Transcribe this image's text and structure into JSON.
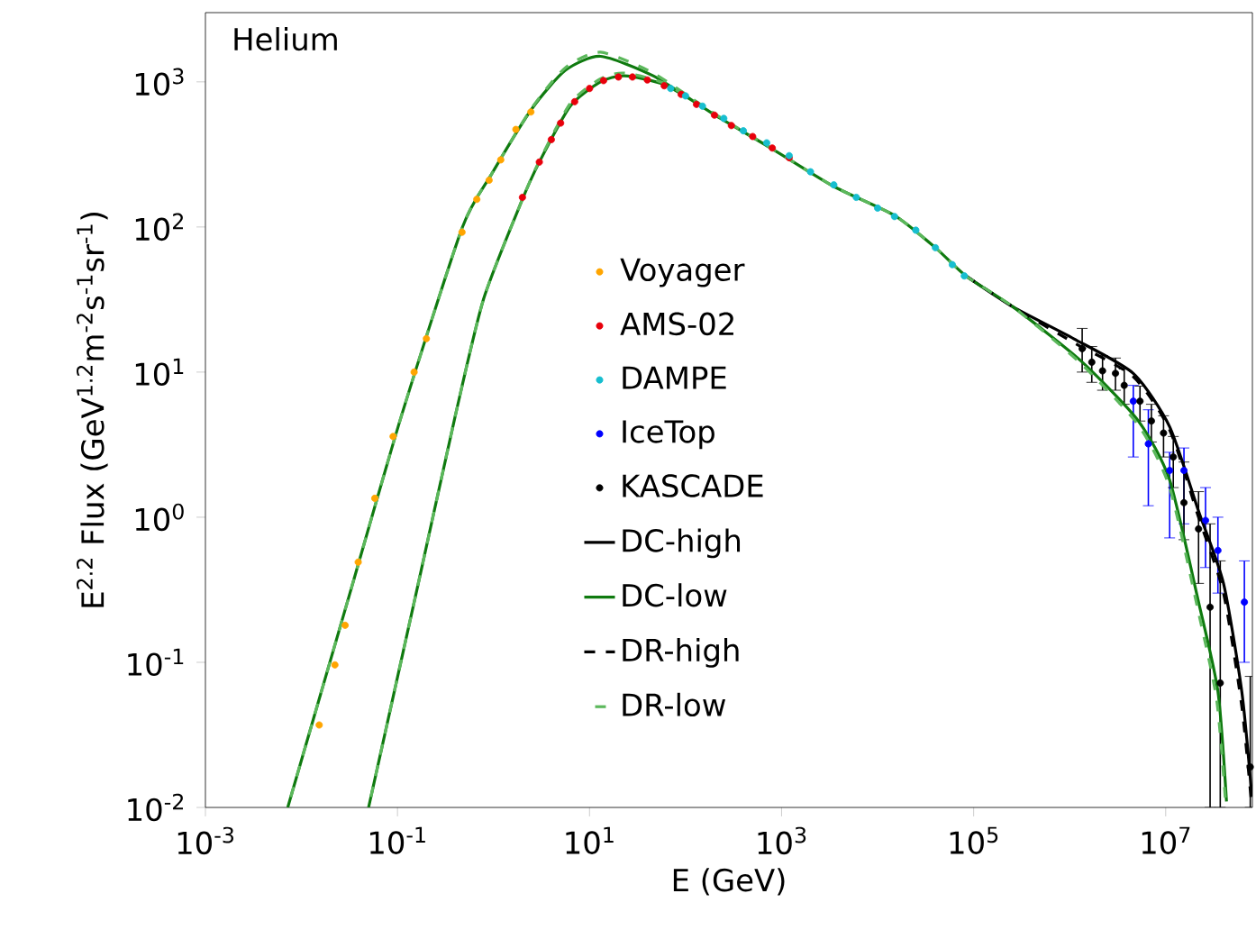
{
  "chart_data": {
    "type": "line",
    "xlabel": "E (GeV)",
    "ylabel": "E$^{2.2}$ Flux (GeV$^{1.2}$m$^{-2}$s$^{-1}$sr$^{-1}$)",
    "annotations": [
      "Helium"
    ],
    "log": "xy",
    "legend": "center",
    "xlim": [
      0.001,
      80000000
    ],
    "ylim": [
      0.01,
      3000
    ],
    "xticks": [
      {
        "value": 0.001,
        "label": "10$^{-3}$"
      },
      {
        "value": 0.1,
        "label": "10$^{-1}$"
      },
      {
        "value": 10,
        "label": "10$^{1}$"
      },
      {
        "value": 1000,
        "label": "10$^{3}$"
      },
      {
        "value": 100000,
        "label": "10$^{5}$"
      },
      {
        "value": 10000000,
        "label": "10$^{7}$"
      }
    ],
    "yticks": [
      {
        "value": 0.01,
        "label": "10$^{-2}$"
      },
      {
        "value": 0.1,
        "label": "10$^{-1}$"
      },
      {
        "value": 1,
        "label": "10$^{0}$"
      },
      {
        "value": 10,
        "label": "10$^{1}$"
      },
      {
        "value": 100,
        "label": "10$^{2}$"
      },
      {
        "value": 1000,
        "label": "10$^{3}$"
      }
    ],
    "series": [
      {
        "name": "Voyager",
        "type": "scatter",
        "marker": "circle",
        "color": "#ffa500",
        "x": [
          0.0153,
          0.0223,
          0.0285,
          0.039,
          0.058,
          0.09,
          0.149,
          0.2,
          0.47,
          0.67,
          0.9,
          1.19,
          1.71,
          2.45
        ],
        "values": [
          0.037,
          0.096,
          0.18,
          0.49,
          1.35,
          3.6,
          10,
          17,
          92,
          155,
          210,
          290,
          470,
          620
        ]
      },
      {
        "name": "AMS-02",
        "type": "scatter",
        "marker": "circle",
        "color": "#e8000b",
        "x": [
          2,
          3,
          4,
          5,
          7,
          10,
          14,
          20,
          28,
          40,
          60,
          90,
          130,
          200,
          300,
          500,
          800,
          1200
        ],
        "values": [
          160,
          280,
          400,
          520,
          730,
          900,
          1020,
          1080,
          1080,
          1030,
          940,
          820,
          700,
          590,
          500,
          420,
          350,
          300
        ]
      },
      {
        "name": "DAMPE",
        "type": "scatter",
        "marker": "circle",
        "color": "#17becf",
        "x": [
          70,
          100,
          150,
          250,
          400,
          700,
          1200,
          2000,
          3500,
          6000,
          10000,
          15000,
          25000,
          40000,
          60000,
          80000
        ],
        "values": [
          900,
          800,
          680,
          560,
          460,
          380,
          310,
          240,
          195,
          160,
          135,
          118,
          95,
          72,
          55,
          46
        ]
      },
      {
        "name": "IceTop",
        "type": "scatter",
        "marker": "circle",
        "color": "#0000ff",
        "x": [
          4600000,
          6600000,
          11000000,
          15500000,
          26000000,
          35000000,
          66000000
        ],
        "values": [
          6.3,
          3.2,
          2.1,
          2.1,
          0.95,
          0.59,
          0.26
        ],
        "errors": [
          [
            2.6,
            8.1
          ],
          [
            1.2,
            5.5
          ],
          [
            0.72,
            2.8
          ],
          [
            0.9,
            3
          ],
          [
            0.45,
            1.6
          ],
          [
            0.3,
            1.0
          ],
          [
            0.1,
            0.5
          ]
        ]
      },
      {
        "name": "KASCADE",
        "type": "scatter",
        "marker": "circle",
        "color": "#000000",
        "x": [
          1350000,
          1700000,
          2200000,
          3000000,
          3700000,
          5400000,
          7100000,
          9500000,
          12000000,
          15500000,
          22000000,
          29000000,
          37000000,
          76000000
        ],
        "values": [
          14.5,
          11.7,
          10.2,
          9.8,
          8.1,
          6.3,
          4.6,
          3.8,
          2.6,
          1.26,
          0.83,
          0.24,
          0.072,
          0.019
        ],
        "errors": [
          [
            10,
            20
          ],
          [
            8.5,
            15
          ],
          [
            7.5,
            13
          ],
          [
            7.5,
            12.5
          ],
          [
            6,
            10.5
          ],
          [
            4.6,
            8
          ],
          [
            3.3,
            6
          ],
          [
            2.6,
            5
          ],
          [
            1.6,
            3.6
          ],
          [
            0.7,
            2.4
          ],
          [
            0.35,
            1.5
          ],
          [
            0.01,
            0.9
          ],
          [
            0.01,
            0.5
          ],
          [
            0.01,
            0.08
          ]
        ]
      },
      {
        "name": "DC-high",
        "type": "line",
        "line_style": "solid",
        "color": "#000000",
        "x": [
          83000,
          260000,
          1100000,
          4600000,
          11000000,
          22000000,
          40000000,
          62000000,
          79000000
        ],
        "values": [
          46,
          28,
          17,
          9.8,
          4.2,
          1.1,
          0.35,
          0.063,
          0.012
        ]
      },
      {
        "name": "DC-low",
        "type": "line",
        "line_style": "solid",
        "color": "#0f7a0f",
        "x": [
          0.0072,
          0.032,
          0.11,
          0.47,
          0.95,
          2.5,
          5.6,
          13,
          46,
          195,
          830,
          3500,
          15000,
          40000,
          83000,
          260000,
          1300000,
          5200000,
          11000000,
          22000000,
          35000000,
          43000000,
          null,
          0.05,
          0.16,
          0.4,
          0.79,
          2,
          3,
          6.3,
          13,
          23,
          62,
          195
        ],
        "values": [
          0.01,
          0.3,
          5,
          98,
          230,
          650,
          1200,
          1500,
          1100,
          600,
          340,
          190,
          120,
          72,
          46,
          28,
          12,
          4.6,
          1.8,
          0.26,
          0.063,
          0.011,
          null,
          0.01,
          0.32,
          5,
          32,
          155,
          280,
          680,
          1000,
          1100,
          950,
          600
        ]
      },
      {
        "name": "DR-high",
        "type": "line",
        "line_style": "dashed",
        "color": "#000000",
        "x": [
          83000,
          260000,
          1100000,
          4600000,
          11000000,
          22000000,
          40000000,
          62000000,
          78000000
        ],
        "values": [
          46,
          28,
          16,
          9.3,
          4.0,
          1.0,
          0.3,
          0.05,
          0.011
        ]
      },
      {
        "name": "DR-low",
        "type": "line",
        "line_style": "dashed",
        "color": "#5cb85c",
        "x": [
          0.0072,
          0.032,
          0.11,
          0.47,
          0.95,
          2.5,
          5.6,
          13,
          46,
          195,
          830,
          3500,
          15000,
          40000,
          83000,
          260000,
          1300000,
          5200000,
          11000000,
          22000000,
          34000000,
          42000000,
          null,
          0.05,
          0.16,
          0.4,
          0.79,
          2,
          3,
          6.3,
          13,
          23,
          62,
          195
        ],
        "values": [
          0.01,
          0.3,
          5,
          98,
          230,
          660,
          1250,
          1600,
          1150,
          610,
          340,
          190,
          120,
          72,
          46,
          28,
          11.5,
          4.3,
          1.6,
          0.22,
          0.055,
          0.011,
          null,
          0.01,
          0.32,
          5,
          32,
          155,
          285,
          710,
          1050,
          1150,
          970,
          600
        ]
      }
    ]
  }
}
